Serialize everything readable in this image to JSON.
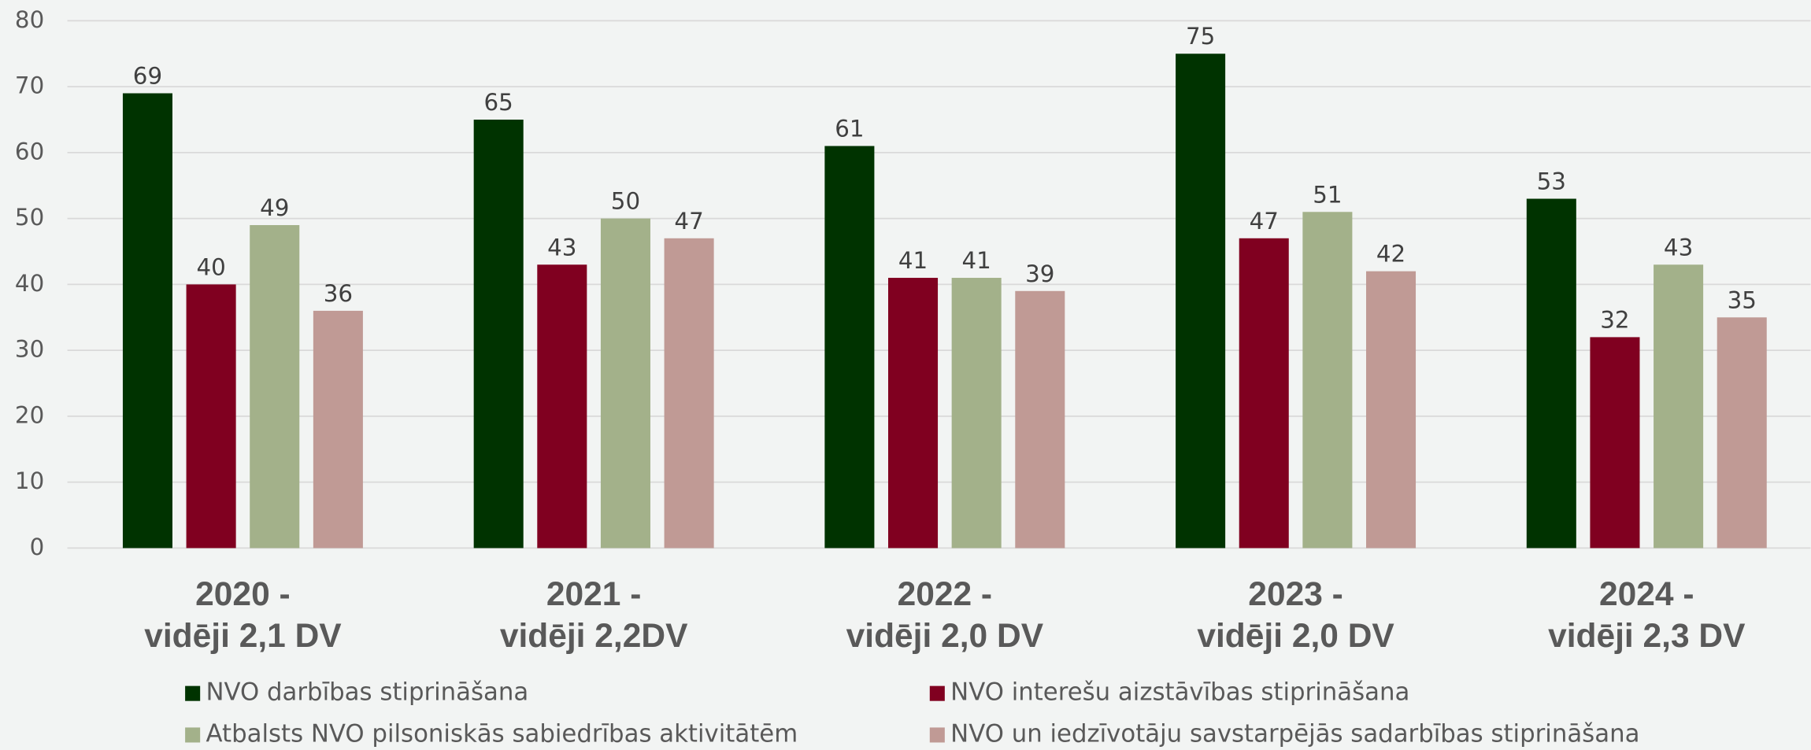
{
  "chart_data": {
    "type": "bar",
    "categories": [
      [
        "2020 -",
        "vidēji 2,1 DV"
      ],
      [
        "2021 -",
        "vidēji 2,2DV"
      ],
      [
        "2022 -",
        "vidēji 2,0 DV"
      ],
      [
        "2023 -",
        "vidēji 2,0 DV"
      ],
      [
        "2024 -",
        "vidēji 2,3 DV"
      ]
    ],
    "series": [
      {
        "name": "NVO darbības stiprināšana",
        "color": "#003300",
        "values": [
          69,
          65,
          61,
          75,
          53
        ]
      },
      {
        "name": "NVO interešu aizstāvības stiprināšana",
        "color": "#800020",
        "values": [
          40,
          43,
          41,
          47,
          32
        ]
      },
      {
        "name": "Atbalsts NVO pilsoniskās sabiedrības aktivitātēm",
        "color": "#a3b18a",
        "values": [
          49,
          50,
          41,
          51,
          43
        ]
      },
      {
        "name": "NVO un iedzīvotāju savstarpējās sadarbības stiprināšana",
        "color": "#c09a95",
        "values": [
          36,
          47,
          39,
          42,
          35
        ]
      }
    ],
    "ylim": [
      0,
      80
    ],
    "yticks": [
      0,
      10,
      20,
      30,
      40,
      50,
      60,
      70,
      80
    ],
    "grid": true,
    "legend": "bottom"
  }
}
